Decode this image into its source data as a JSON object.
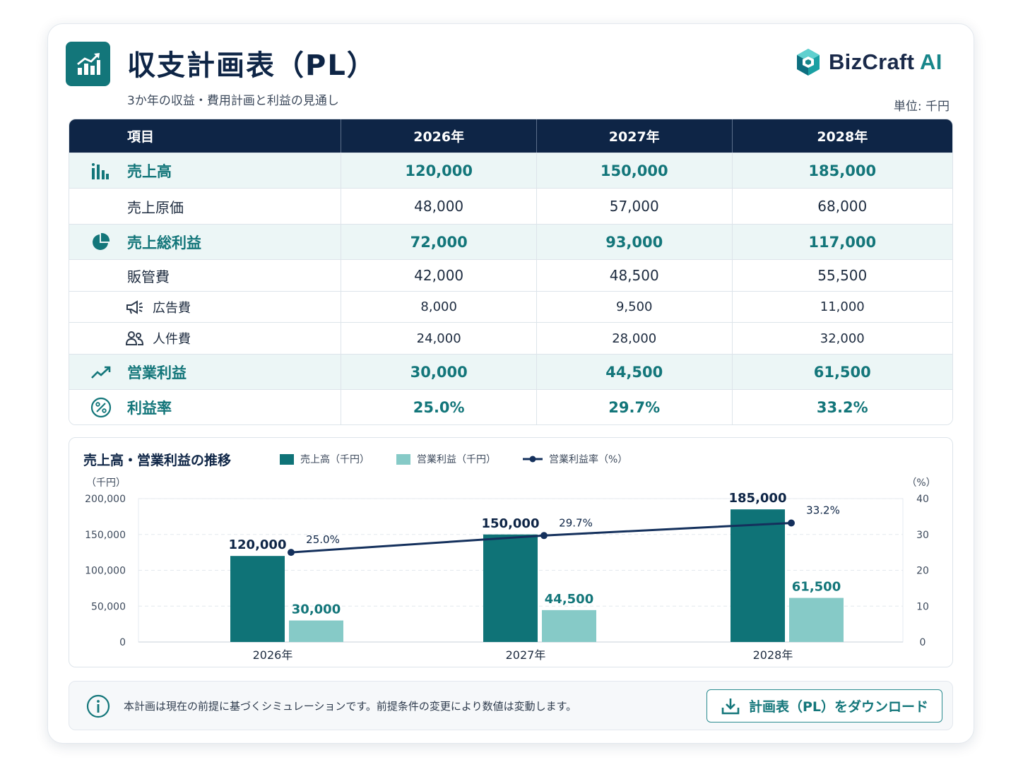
{
  "header": {
    "title": "収支計画表（PL）",
    "subtitle": "3か年の収益・費用計画と利益の見通し",
    "brand_name": "BizCraft",
    "brand_suffix": "AI",
    "unit": "単位: 千円",
    "icon": "bar-chart-trend-icon"
  },
  "table": {
    "columns": [
      "項目",
      "2026年",
      "2027年",
      "2028年"
    ],
    "rows": [
      {
        "label": "売上高",
        "values": [
          "120,000",
          "150,000",
          "185,000"
        ],
        "highlight": true,
        "icon": "bar-chart-icon"
      },
      {
        "label": "売上原価",
        "values": [
          "48,000",
          "57,000",
          "68,000"
        ]
      },
      {
        "label": "売上総利益",
        "values": [
          "72,000",
          "93,000",
          "117,000"
        ],
        "highlight": true,
        "icon": "pie-chart-icon"
      },
      {
        "label": "販管費",
        "values": [
          "42,000",
          "48,500",
          "55,500"
        ]
      },
      {
        "label": "広告費",
        "values": [
          "8,000",
          "9,500",
          "11,000"
        ],
        "sub": true,
        "icon": "megaphone-icon"
      },
      {
        "label": "人件費",
        "values": [
          "24,000",
          "28,000",
          "32,000"
        ],
        "sub": true,
        "icon": "people-icon"
      },
      {
        "label": "営業利益",
        "values": [
          "30,000",
          "44,500",
          "61,500"
        ],
        "highlight": true,
        "icon": "trend-up-icon"
      },
      {
        "label": "利益率",
        "values": [
          "25.0%",
          "29.7%",
          "33.2%"
        ],
        "highlight": true,
        "icon": "percent-icon"
      }
    ]
  },
  "chart_data": {
    "type": "bar",
    "title": "売上高・営業利益の推移",
    "categories": [
      "2026年",
      "2027年",
      "2028年"
    ],
    "series": [
      {
        "name": "売上高（千円）",
        "values": [
          120000,
          150000,
          185000
        ],
        "labels": [
          "120,000",
          "150,000",
          "185,000"
        ],
        "color": "#0f7377"
      },
      {
        "name": "営業利益（千円）",
        "values": [
          30000,
          44500,
          61500
        ],
        "labels": [
          "30,000",
          "44,500",
          "61,500"
        ],
        "color": "#86cac7"
      }
    ],
    "line_series": {
      "name": "営業利益率（%）",
      "values": [
        25.0,
        29.7,
        33.2
      ],
      "labels": [
        "25.0%",
        "29.7%",
        "33.2%"
      ],
      "color": "#14305c"
    },
    "ylabel": "（千円）",
    "y2label": "（%）",
    "ylim": [
      0,
      200000
    ],
    "y2lim": [
      0,
      40
    ],
    "yticks": [
      "200,000",
      "150,000",
      "100,000",
      "50,000",
      "0"
    ],
    "y2ticks": [
      "40",
      "30",
      "20",
      "10",
      "0"
    ],
    "grid": true,
    "legend": "top"
  },
  "footer": {
    "note": "本計画は現在の前提に基づくシミュレーションです。前提条件の変更により数値は変動します。",
    "download_label": "計画表（PL）をダウンロード"
  }
}
